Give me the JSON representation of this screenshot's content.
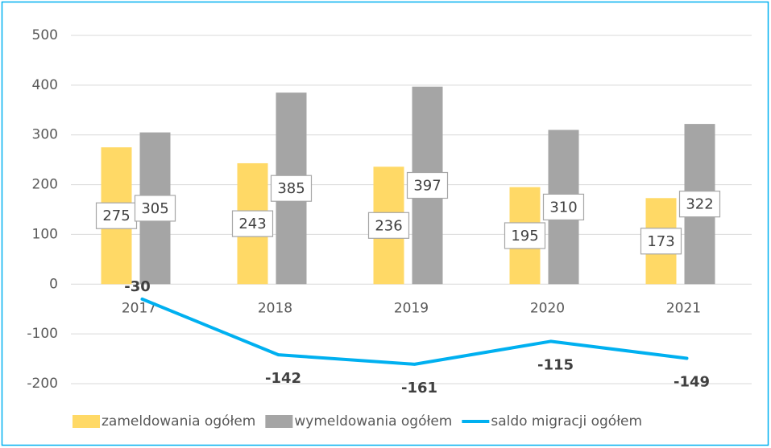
{
  "chart_data": {
    "type": "bar",
    "categories": [
      "2017",
      "2018",
      "2019",
      "2020",
      "2021"
    ],
    "series": [
      {
        "name": "zameldowania ogółem",
        "type": "bar",
        "color": "#ffd966",
        "values": [
          275,
          243,
          236,
          195,
          173
        ]
      },
      {
        "name": "wymeldowania ogółem",
        "type": "bar",
        "color": "#a5a5a5",
        "values": [
          305,
          385,
          397,
          310,
          322
        ]
      },
      {
        "name": "saldo migracji ogółem",
        "type": "line",
        "color": "#00b0f0",
        "values": [
          -30,
          -142,
          -161,
          -115,
          -149
        ]
      }
    ],
    "ylim": [
      -200,
      500
    ],
    "yticks": [
      -200,
      -100,
      0,
      100,
      200,
      300,
      400,
      500
    ],
    "grid": true,
    "legend": "bottom"
  }
}
